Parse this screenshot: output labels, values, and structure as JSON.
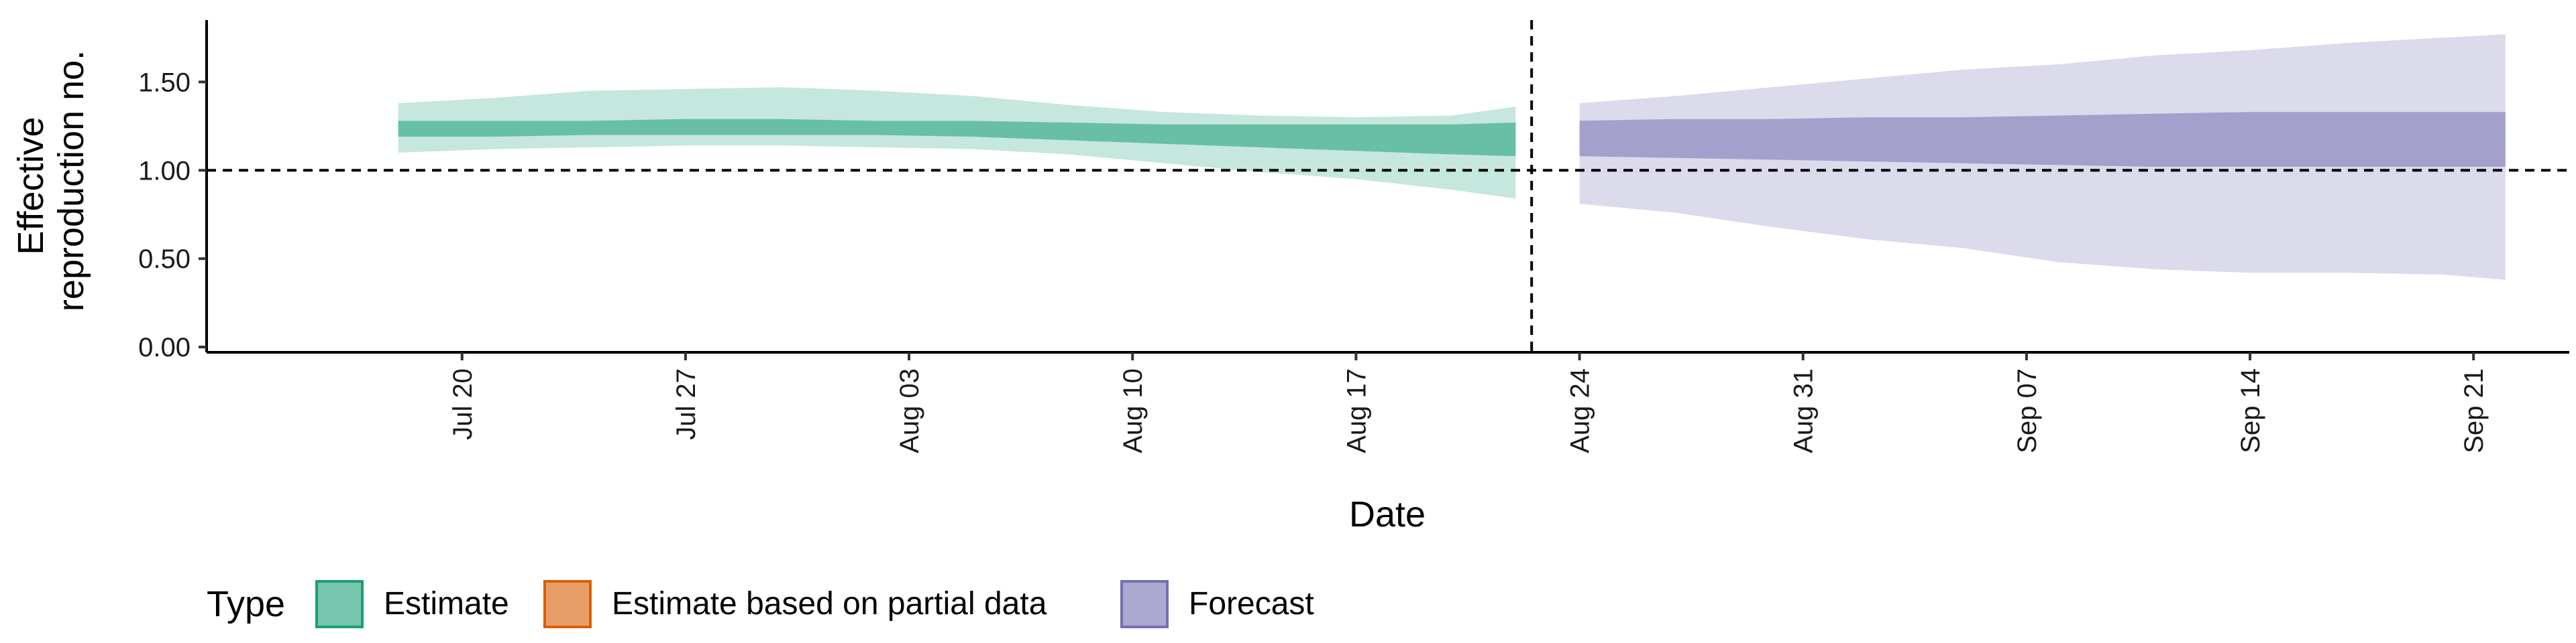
{
  "chart_data": {
    "type": "area",
    "title": "",
    "xlabel": "Date",
    "ylabel": [
      "Effective",
      "reproduction no."
    ],
    "ylim": [
      -0.03,
      1.85
    ],
    "xlim": [
      "2020-07-12",
      "2020-09-24"
    ],
    "y_ticks": [
      0.0,
      0.5,
      1.0,
      1.5
    ],
    "y_tick_labels": [
      "0.00",
      "0.50",
      "1.00",
      "1.50"
    ],
    "x_ticks": [
      "2020-07-20",
      "2020-07-27",
      "2020-08-03",
      "2020-08-10",
      "2020-08-17",
      "2020-08-24",
      "2020-08-31",
      "2020-09-07",
      "2020-09-14",
      "2020-09-21"
    ],
    "x_tick_labels": [
      "Jul 20",
      "Jul 27",
      "Aug 03",
      "Aug 10",
      "Aug 17",
      "Aug 24",
      "Aug 31",
      "Sep 07",
      "Sep 14",
      "Sep 21"
    ],
    "reference_hline": 1.0,
    "reference_vline": "2020-08-22 12:00",
    "grid": false,
    "legend": {
      "title": "Type",
      "position": "bottom-left",
      "entries": [
        {
          "label": "Estimate",
          "color": "#1b9e77"
        },
        {
          "label": "Estimate based on partial data",
          "color": "#d95f02"
        },
        {
          "label": "Forecast",
          "color": "#7570b3"
        }
      ]
    },
    "series": [
      {
        "name": "Estimate",
        "color": "#1b9e77",
        "x": [
          "2020-07-18",
          "2020-07-21",
          "2020-07-24",
          "2020-07-27",
          "2020-07-30",
          "2020-08-02",
          "2020-08-05",
          "2020-08-08",
          "2020-08-11",
          "2020-08-14",
          "2020-08-17",
          "2020-08-20",
          "2020-08-22"
        ],
        "outer_lower": [
          1.1,
          1.12,
          1.13,
          1.14,
          1.14,
          1.13,
          1.12,
          1.09,
          1.04,
          0.99,
          0.95,
          0.89,
          0.84
        ],
        "outer_upper": [
          1.38,
          1.41,
          1.45,
          1.46,
          1.47,
          1.45,
          1.42,
          1.37,
          1.33,
          1.31,
          1.3,
          1.31,
          1.36
        ],
        "inner_lower": [
          1.19,
          1.19,
          1.2,
          1.2,
          1.2,
          1.2,
          1.19,
          1.17,
          1.15,
          1.13,
          1.11,
          1.09,
          1.08
        ],
        "inner_upper": [
          1.28,
          1.28,
          1.28,
          1.29,
          1.29,
          1.28,
          1.28,
          1.27,
          1.26,
          1.26,
          1.26,
          1.26,
          1.27
        ]
      },
      {
        "name": "Forecast",
        "color": "#7570b3",
        "x": [
          "2020-08-24",
          "2020-08-27",
          "2020-08-30",
          "2020-09-02",
          "2020-09-05",
          "2020-09-08",
          "2020-09-11",
          "2020-09-14",
          "2020-09-17",
          "2020-09-20",
          "2020-09-22"
        ],
        "outer_lower": [
          0.81,
          0.76,
          0.68,
          0.61,
          0.56,
          0.48,
          0.44,
          0.42,
          0.42,
          0.41,
          0.38
        ],
        "outer_upper": [
          1.38,
          1.42,
          1.47,
          1.52,
          1.57,
          1.6,
          1.65,
          1.68,
          1.72,
          1.75,
          1.77
        ],
        "inner_lower": [
          1.08,
          1.07,
          1.06,
          1.05,
          1.04,
          1.03,
          1.02,
          1.02,
          1.02,
          1.02,
          1.02
        ],
        "inner_upper": [
          1.28,
          1.29,
          1.29,
          1.3,
          1.3,
          1.31,
          1.32,
          1.33,
          1.33,
          1.33,
          1.33
        ]
      }
    ]
  }
}
